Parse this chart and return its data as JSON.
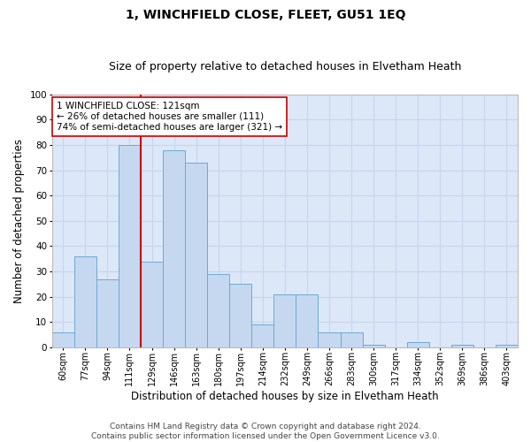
{
  "title": "1, WINCHFIELD CLOSE, FLEET, GU51 1EQ",
  "subtitle": "Size of property relative to detached houses in Elvetham Heath",
  "xlabel": "Distribution of detached houses by size in Elvetham Heath",
  "ylabel": "Number of detached properties",
  "categories": [
    "60sqm",
    "77sqm",
    "94sqm",
    "111sqm",
    "129sqm",
    "146sqm",
    "163sqm",
    "180sqm",
    "197sqm",
    "214sqm",
    "232sqm",
    "249sqm",
    "266sqm",
    "283sqm",
    "300sqm",
    "317sqm",
    "334sqm",
    "352sqm",
    "369sqm",
    "386sqm",
    "403sqm"
  ],
  "values": [
    6,
    36,
    27,
    80,
    34,
    78,
    73,
    29,
    25,
    9,
    21,
    21,
    6,
    6,
    1,
    0,
    2,
    0,
    1,
    0,
    1
  ],
  "bar_color": "#c5d8f0",
  "bar_edge_color": "#6aaad4",
  "vline_color": "#cc0000",
  "annotation_text": "1 WINCHFIELD CLOSE: 121sqm\n← 26% of detached houses are smaller (111)\n74% of semi-detached houses are larger (321) →",
  "annotation_box_color": "#ffffff",
  "annotation_box_edge": "#cc0000",
  "grid_color": "#c8d4e8",
  "background_color": "#dce8f8",
  "ylim": [
    0,
    100
  ],
  "footer": "Contains HM Land Registry data © Crown copyright and database right 2024.\nContains public sector information licensed under the Open Government Licence v3.0.",
  "title_fontsize": 10,
  "subtitle_fontsize": 9,
  "xlabel_fontsize": 8.5,
  "ylabel_fontsize": 8.5,
  "tick_fontsize": 7,
  "footer_fontsize": 6.5,
  "ann_fontsize": 7.5
}
